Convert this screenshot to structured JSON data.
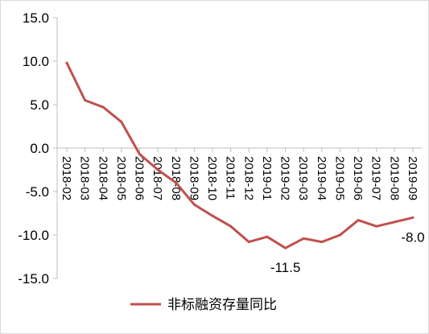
{
  "chart_data": {
    "type": "line",
    "categories": [
      "2018-02",
      "2018-03",
      "2018-04",
      "2018-05",
      "2018-06",
      "2018-07",
      "2018-08",
      "2018-09",
      "2018-10",
      "2018-11",
      "2018-12",
      "2019-01",
      "2019-02",
      "2019-03",
      "2019-04",
      "2019-05",
      "2019-06",
      "2019-07",
      "2019-08",
      "2019-09"
    ],
    "series": [
      {
        "name": "非标融资存量同比",
        "color": "#c0504d",
        "values": [
          9.8,
          5.5,
          4.7,
          3.0,
          -0.7,
          -2.5,
          -4.0,
          -6.5,
          -7.8,
          -9.0,
          -10.8,
          -10.2,
          -11.5,
          -10.4,
          -10.8,
          -10.0,
          -8.3,
          -9.0,
          -8.5,
          -8.0
        ]
      }
    ],
    "yticks": [
      "15.0",
      "10.0",
      "5.0",
      "0.0",
      "-5.0",
      "-10.0",
      "-15.0"
    ],
    "ylim": [
      -15,
      15
    ],
    "data_labels": [
      {
        "index": 12,
        "text": "-11.5"
      },
      {
        "index": 19,
        "text": "-8.0"
      }
    ],
    "grid": false,
    "legend_position": "bottom"
  }
}
